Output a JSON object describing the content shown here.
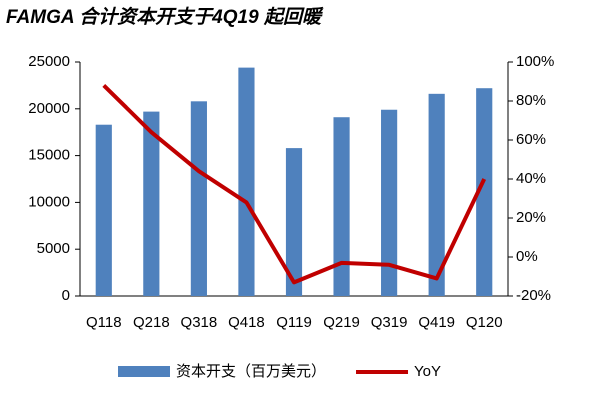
{
  "chart_data": {
    "type": "combo",
    "title": "FAMGA 合计资本开支于4Q19 起回暖",
    "categories": [
      "Q118",
      "Q218",
      "Q318",
      "Q418",
      "Q119",
      "Q219",
      "Q319",
      "Q419",
      "Q120"
    ],
    "series": [
      {
        "name": "资本开支（百万美元）",
        "type": "bar",
        "color": "#4f81bd",
        "values": [
          18300,
          19700,
          20800,
          24400,
          15800,
          19100,
          19900,
          21600,
          22200
        ]
      },
      {
        "name": "YoY",
        "type": "line",
        "axis": "y2",
        "color": "#c00000",
        "values": [
          88,
          64,
          44,
          28,
          -13,
          -3,
          -4,
          -11,
          40
        ]
      }
    ],
    "ylim": [
      0,
      25000
    ],
    "yticks": [
      0,
      5000,
      10000,
      15000,
      20000,
      25000
    ],
    "y2lim": [
      -20,
      100
    ],
    "y2ticks": [
      {
        "value": -20,
        "label": "-20%"
      },
      {
        "value": 0,
        "label": "0%"
      },
      {
        "value": 20,
        "label": "20%"
      },
      {
        "value": 40,
        "label": "40%"
      },
      {
        "value": 60,
        "label": "60%"
      },
      {
        "value": 80,
        "label": "80%"
      },
      {
        "value": 100,
        "label": "100%"
      }
    ],
    "grid": false
  }
}
